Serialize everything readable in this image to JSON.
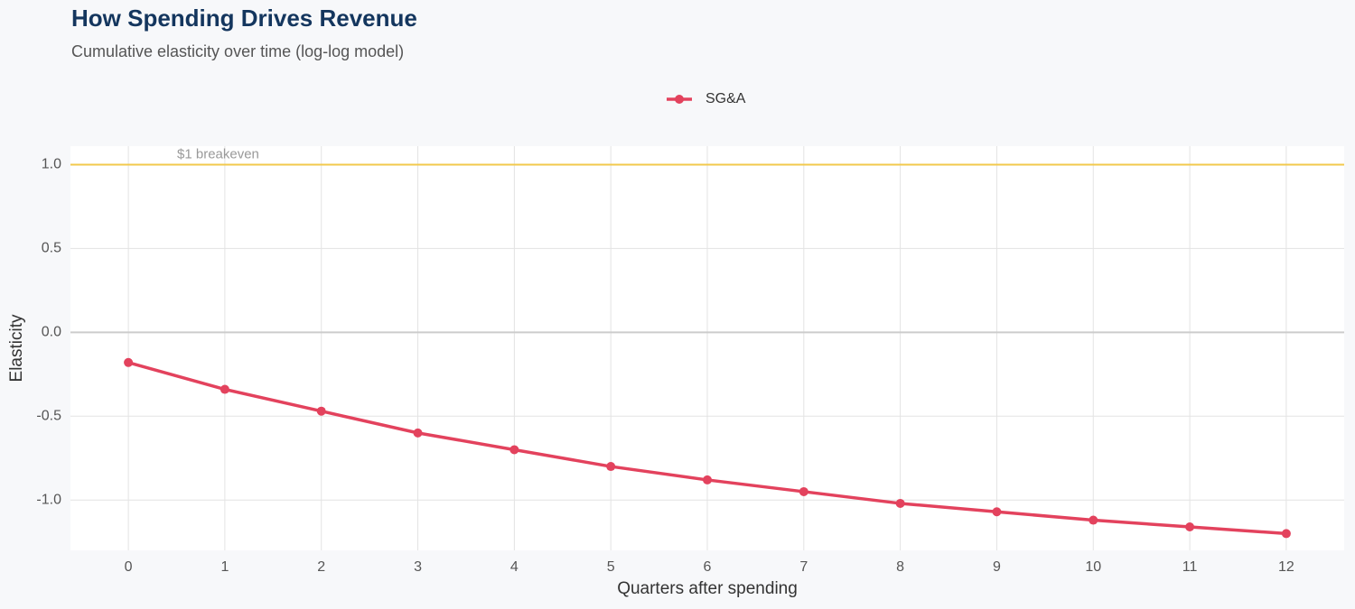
{
  "chart_data": {
    "type": "line",
    "title": "How Spending Drives Revenue",
    "subtitle": "Cumulative elasticity over time (log-log model)",
    "x_label": "Quarters after spending",
    "y_label": "Elasticity",
    "x": [
      0,
      1,
      2,
      3,
      4,
      5,
      6,
      7,
      8,
      9,
      10,
      11,
      12
    ],
    "series": [
      {
        "name": "SG&A",
        "color": "#e3425d",
        "values": [
          -0.18,
          -0.34,
          -0.47,
          -0.6,
          -0.7,
          -0.8,
          -0.88,
          -0.95,
          -1.02,
          -1.07,
          -1.12,
          -1.16,
          -1.2
        ]
      }
    ],
    "xlim": [
      -0.6,
      12.6
    ],
    "ylim": [
      -1.3,
      1.11
    ],
    "xticks": [
      0,
      1,
      2,
      3,
      4,
      5,
      6,
      7,
      8,
      9,
      10,
      11,
      12
    ],
    "yticks": [
      {
        "value": -1,
        "label": "-1.0"
      },
      -0.5,
      {
        "value": 0,
        "label": "0.0"
      },
      0.5,
      {
        "value": 1,
        "label": "1.0"
      }
    ],
    "grid": true,
    "legend": "top",
    "reference_line": {
      "value": 1,
      "label": "$1 breakeven",
      "color": "#f2c94c"
    }
  }
}
